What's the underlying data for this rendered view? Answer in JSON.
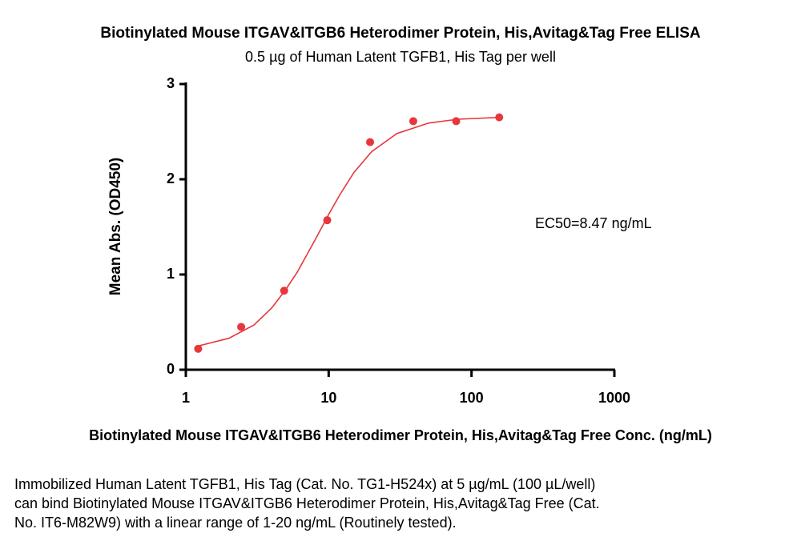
{
  "chart_data": {
    "type": "scatter",
    "title": "Biotinylated Mouse ITGAV&ITGB6 Heterodimer Protein, His,Avitag&Tag Free ELISA",
    "subtitle": "0.5 µg of Human Latent TGFB1, His Tag per well",
    "x_label": "Biotinylated Mouse ITGAV&ITGB6 Heterodimer Protein, His,Avitag&Tag Free Conc. (ng/mL)",
    "y_label": "Mean Abs. (OD450)",
    "annotation": "EC50=8.47 ng/mL",
    "x_scale": "log",
    "xlim": [
      1,
      1000
    ],
    "xticks": [
      1,
      10,
      100,
      1000
    ],
    "ylim": [
      0,
      3
    ],
    "yticks": [
      0,
      1,
      2,
      3
    ],
    "points": {
      "color": "#e8373c",
      "x": [
        1.22,
        2.44,
        4.88,
        9.77,
        19.5,
        39.1,
        78.1,
        156.25
      ],
      "values": [
        0.22,
        0.45,
        0.83,
        1.57,
        2.39,
        2.61,
        2.61,
        2.65
      ]
    },
    "curve": {
      "color": "#e8373c",
      "x": [
        1.22,
        2,
        3,
        4,
        5,
        6,
        8,
        10,
        12,
        15,
        20,
        30,
        50,
        80,
        156.25
      ],
      "values": [
        0.25,
        0.33,
        0.47,
        0.65,
        0.84,
        1.02,
        1.36,
        1.63,
        1.84,
        2.07,
        2.29,
        2.48,
        2.59,
        2.63,
        2.65
      ]
    }
  },
  "caption": {
    "lines": [
      "Immobilized Human Latent TGFB1, His Tag (Cat. No. TG1-H524x) at 5 µg/mL (100 µL/well)",
      "can bind Biotinylated Mouse ITGAV&ITGB6 Heterodimer Protein, His,Avitag&Tag Free (Cat.",
      "No. IT6-M82W9) with a linear range of 1-20 ng/mL (Routinely tested)."
    ]
  }
}
